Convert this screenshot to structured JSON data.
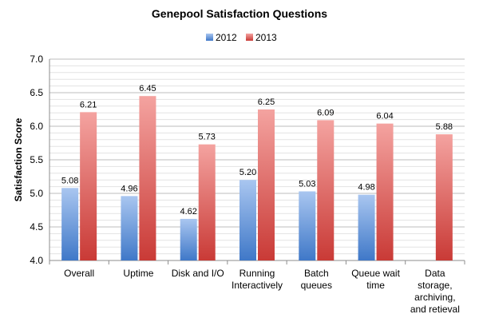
{
  "chart_data": {
    "type": "bar",
    "title": "Genepool Satisfaction Questions",
    "ylabel": "Satisfaction Score",
    "xlabel": "",
    "ylim": [
      4.0,
      7.0
    ],
    "ytick_step": 0.5,
    "grid": true,
    "legend_position": "top-center",
    "categories": [
      [
        "Overall"
      ],
      [
        "Uptime"
      ],
      [
        "Disk and I/O"
      ],
      [
        "Running",
        "Interactively"
      ],
      [
        "Batch",
        "queues"
      ],
      [
        "Queue wait",
        "time"
      ],
      [
        "Data",
        "storage,",
        "archiving,",
        "and retieval"
      ]
    ],
    "series": [
      {
        "name": "2012",
        "color": "#4f81bd",
        "values": [
          5.08,
          4.96,
          4.62,
          5.2,
          5.03,
          4.98,
          null
        ],
        "labels": [
          "5.08",
          "4.96",
          "4.62",
          "5.20",
          "5.03",
          "4.98",
          null
        ]
      },
      {
        "name": "2013",
        "color": "#d9534f",
        "values": [
          6.21,
          6.45,
          5.73,
          6.25,
          6.09,
          6.04,
          5.88
        ],
        "labels": [
          "6.21",
          "6.45",
          "5.73",
          "6.25",
          "6.09",
          "6.04",
          "5.88"
        ]
      }
    ]
  }
}
